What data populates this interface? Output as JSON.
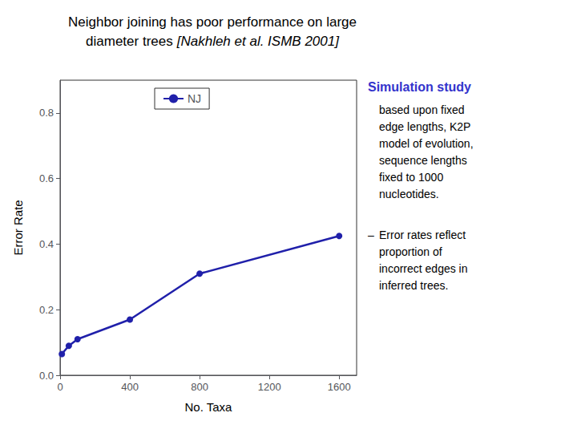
{
  "chart_data": {
    "type": "line",
    "title": "Neighbor joining has poor performance on large\ndiameter trees",
    "subtitle": "[Nakhleh et al. ISMB 2001]",
    "x": [
      10,
      50,
      100,
      400,
      800,
      1600
    ],
    "series": [
      {
        "name": "NJ",
        "color": "#2020aa",
        "marker": "circle",
        "values": [
          0.065,
          0.09,
          0.11,
          0.17,
          0.31,
          0.425
        ]
      }
    ],
    "xlabel": "No. Taxa",
    "ylabel": "Error Rate",
    "xlim": [
      0,
      1700
    ],
    "ylim": [
      0,
      0.9
    ],
    "xticks": [
      0,
      400,
      800,
      1200,
      1600
    ],
    "yticks": [
      {
        "value": 0,
        "label": "0.0"
      },
      0.2,
      0.4,
      0.6,
      0.8
    ],
    "grid": false,
    "legend": "upper left",
    "annotations": [
      {
        "text": "Simulation study",
        "color": "#3333cc"
      },
      {
        "text": "based upon fixed\nedge lengths, K2P\nmodel of evolution,\nsequence lengths\nfixed to 1000\nnucleotides."
      },
      {
        "text": "–"
      },
      {
        "text": "Error rates reflect\nproportion of\nincorrect edges in\ninferred trees."
      }
    ]
  }
}
